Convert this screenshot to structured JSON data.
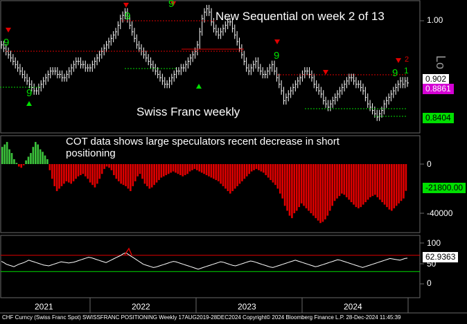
{
  "annotations": {
    "title": "New Sequential on week 2 of 13",
    "subtitle": "Swiss Franc weekly",
    "cot_note": "COT data shows large speculators recent decrease in short positioning",
    "vertical_label": "Lo"
  },
  "badges": {
    "price_last": "0.902",
    "price_mid": "0.8861",
    "price_low": "0.8404",
    "cot_last": "-21800.00",
    "rsi_last": "62.9363"
  },
  "axis_labels": {
    "price_tick": "1.00",
    "cot_tick_0": "0",
    "cot_tick_neg": "-40000",
    "rsi_tick_100": "100",
    "rsi_tick_50": "50",
    "rsi_tick_0": "0"
  },
  "years": [
    "2021",
    "2022",
    "2023",
    "2024"
  ],
  "footer": "CHF Curncy (Swiss Franc Spot) SWISSFRANC POSITIONING  Weekly 17AUG2019-28DEC2024 Copyright© 2024 Bloomberg Finance L.P.  28-Dec-2024 11:45:39",
  "colors": {
    "background": "#000000",
    "price_bars": "#ffffff",
    "sequential": "#00e000",
    "arrow_red": "#e00000",
    "cot_positive": "#3cc43c",
    "cot_negative": "#e00000",
    "rsi_line": "#ffffff",
    "rsi_overbought": "#e00000",
    "rsi_oversold": "#00e000",
    "badge_mid": "#d400d4",
    "badge_low": "#00e000"
  },
  "chart_data": [
    {
      "type": "ohlc",
      "name": "CHF Curncy weekly",
      "x_start": "2019-08-17",
      "x_end": "2024-12-28",
      "ylim": [
        0.83,
        1.02
      ],
      "y_ticks": [
        1.0
      ],
      "weekly_close": [
        0.96,
        0.955,
        0.95,
        0.945,
        0.94,
        0.935,
        0.93,
        0.925,
        0.92,
        0.915,
        0.91,
        0.905,
        0.9,
        0.895,
        0.89,
        0.89,
        0.895,
        0.9,
        0.905,
        0.91,
        0.915,
        0.92,
        0.92,
        0.92,
        0.915,
        0.915,
        0.91,
        0.91,
        0.915,
        0.92,
        0.925,
        0.93,
        0.935,
        0.935,
        0.93,
        0.93,
        0.925,
        0.925,
        0.925,
        0.93,
        0.935,
        0.94,
        0.945,
        0.95,
        0.955,
        0.96,
        0.965,
        0.97,
        0.975,
        0.98,
        0.99,
        1.0,
        1.005,
        1.01,
        1.0,
        0.99,
        0.98,
        0.97,
        0.96,
        0.955,
        0.95,
        0.945,
        0.94,
        0.935,
        0.93,
        0.925,
        0.92,
        0.915,
        0.91,
        0.905,
        0.9,
        0.9,
        0.905,
        0.91,
        0.915,
        0.92,
        0.92,
        0.925,
        0.925,
        0.93,
        0.935,
        0.94,
        0.945,
        0.95,
        0.96,
        0.98,
        1.0,
        1.01,
        1.015,
        1.01,
        0.995,
        0.985,
        0.98,
        0.975,
        0.98,
        0.985,
        0.99,
        0.995,
        0.995,
        0.985,
        0.975,
        0.965,
        0.955,
        0.945,
        0.935,
        0.925,
        0.92,
        0.925,
        0.93,
        0.935,
        0.925,
        0.92,
        0.915,
        0.915,
        0.92,
        0.925,
        0.93,
        0.92,
        0.91,
        0.9,
        0.89,
        0.875,
        0.88,
        0.885,
        0.89,
        0.895,
        0.9,
        0.905,
        0.91,
        0.915,
        0.92,
        0.92,
        0.915,
        0.91,
        0.9,
        0.895,
        0.89,
        0.885,
        0.875,
        0.87,
        0.865,
        0.87,
        0.875,
        0.88,
        0.885,
        0.89,
        0.895,
        0.9,
        0.905,
        0.91,
        0.91,
        0.905,
        0.9,
        0.9,
        0.895,
        0.89,
        0.88,
        0.87,
        0.865,
        0.86,
        0.855,
        0.85,
        0.855,
        0.86,
        0.87,
        0.875,
        0.88,
        0.885,
        0.89,
        0.895,
        0.9,
        0.905,
        0.9,
        0.905,
        0.902
      ],
      "sequential_labels": [
        "9",
        "9",
        "9",
        "9",
        "9",
        "9",
        "1",
        "2"
      ],
      "levels": [
        0.8861,
        0.8404
      ]
    },
    {
      "type": "bar",
      "name": "SWISSFRANC POSITIONING",
      "ylim": [
        -50000,
        20000
      ],
      "y_ticks": [
        0,
        -40000
      ],
      "last_value": -21800,
      "values": [
        14000,
        16000,
        18000,
        12000,
        9000,
        4000,
        1000,
        -2000,
        -3000,
        -1000,
        3000,
        6000,
        9000,
        14000,
        18000,
        16000,
        12000,
        10000,
        7000,
        4000,
        -5000,
        -12000,
        -18000,
        -22000,
        -20000,
        -18000,
        -16000,
        -14000,
        -15000,
        -16000,
        -14000,
        -12000,
        -10000,
        -9000,
        -8000,
        -10000,
        -12000,
        -15000,
        -17000,
        -19000,
        -16000,
        -12000,
        -8000,
        -4000,
        -2000,
        -3000,
        -5000,
        -9000,
        -12000,
        -14000,
        -16000,
        -17000,
        -18000,
        -20000,
        -22000,
        -18000,
        -14000,
        -10000,
        -8000,
        -12000,
        -16000,
        -18000,
        -20000,
        -19000,
        -17000,
        -15000,
        -13000,
        -11000,
        -10000,
        -9000,
        -8000,
        -7000,
        -6000,
        -7000,
        -8000,
        -9000,
        -10000,
        -9000,
        -8000,
        -6000,
        -5000,
        -4000,
        -5000,
        -6000,
        -7000,
        -8000,
        -9000,
        -10000,
        -11000,
        -12000,
        -13000,
        -14000,
        -16000,
        -18000,
        -20000,
        -22000,
        -24000,
        -22000,
        -20000,
        -18000,
        -16000,
        -14000,
        -12000,
        -10000,
        -8000,
        -6000,
        -5000,
        -4000,
        -5000,
        -6000,
        -7000,
        -9000,
        -11000,
        -13000,
        -15000,
        -17000,
        -20000,
        -24000,
        -28000,
        -34000,
        -38000,
        -42000,
        -44000,
        -40000,
        -38000,
        -35000,
        -32000,
        -34000,
        -36000,
        -38000,
        -40000,
        -42000,
        -44000,
        -46000,
        -48000,
        -47000,
        -45000,
        -42000,
        -38000,
        -34000,
        -30000,
        -28000,
        -26000,
        -24000,
        -25000,
        -27000,
        -29000,
        -31000,
        -33000,
        -35000,
        -36000,
        -35000,
        -33000,
        -31000,
        -29000,
        -27000,
        -26000,
        -25000,
        -27000,
        -29000,
        -31000,
        -33000,
        -35000,
        -37000,
        -38000,
        -36000,
        -34000,
        -32000,
        -30000,
        -28000,
        -21800
      ]
    },
    {
      "type": "line",
      "name": "RSI",
      "ylim": [
        0,
        100
      ],
      "y_ticks": [
        100,
        50,
        0
      ],
      "reference_lines": [
        70,
        30
      ],
      "last_value": 62.9363,
      "values": [
        55,
        52,
        48,
        46,
        44,
        42,
        45,
        48,
        50,
        52,
        55,
        58,
        56,
        54,
        52,
        50,
        48,
        46,
        45,
        44,
        46,
        48,
        50,
        52,
        54,
        53,
        52,
        51,
        52,
        53,
        55,
        57,
        59,
        61,
        63,
        65,
        64,
        62,
        60,
        58,
        56,
        54,
        52,
        55,
        58,
        61,
        64,
        67,
        70,
        74,
        76,
        72,
        68,
        64,
        60,
        56,
        52,
        48,
        46,
        44,
        42,
        40,
        41,
        43,
        45,
        47,
        49,
        51,
        53,
        55,
        54,
        52,
        50,
        48,
        46,
        44,
        42,
        40,
        38,
        36,
        38,
        40,
        42,
        44,
        46,
        48,
        50,
        52,
        54,
        53,
        51,
        49,
        47,
        45,
        44,
        46,
        48,
        50,
        52,
        54,
        56,
        55,
        53,
        51,
        49,
        47,
        45,
        43,
        41,
        40,
        42,
        44,
        46,
        48,
        50,
        52,
        54,
        56,
        58,
        56,
        54,
        52,
        50,
        48,
        46,
        44,
        42,
        43,
        45,
        47,
        49,
        51,
        53,
        55,
        57,
        59,
        58,
        56,
        54,
        52,
        50,
        48,
        46,
        44,
        42,
        40,
        42,
        44,
        46,
        48,
        50,
        52,
        54,
        56,
        58,
        60,
        62,
        61,
        60,
        59,
        58,
        60,
        62,
        62.9363
      ]
    }
  ]
}
